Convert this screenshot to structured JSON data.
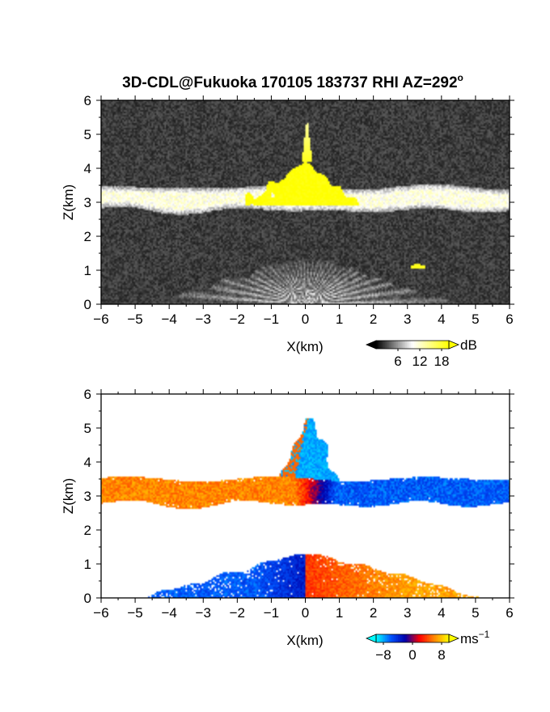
{
  "figure_title": "3D-CDL@Fukuoka 170105 183737 RHI AZ=292",
  "title_superscript": "o",
  "chart_data": [
    {
      "type": "heatmap",
      "quantity": "backscatter intensity",
      "xlabel": "X(km)",
      "ylabel": "Z(km)",
      "xlim": [
        -6,
        6
      ],
      "ylim": [
        0,
        6
      ],
      "x_ticks": [
        -6,
        -5,
        -4,
        -3,
        -2,
        -1,
        0,
        1,
        2,
        3,
        4,
        5,
        6
      ],
      "y_ticks": [
        0,
        1,
        2,
        3,
        4,
        5,
        6
      ],
      "colorbar": {
        "unit": "dB",
        "tick_labels": [
          "6",
          "12",
          "18"
        ],
        "range": [
          0,
          20
        ],
        "colors": [
          "#000000",
          "#ffffff",
          "#ffff00"
        ]
      },
      "features": [
        {
          "feature": "cloud layer",
          "z_bottom_km": 2.75,
          "z_top_km": 3.45,
          "x_range_km": [
            -6,
            6
          ],
          "level_db": 11
        },
        {
          "feature": "strong echo core",
          "z_range_km": [
            2.9,
            4.2
          ],
          "x_range_km": [
            -2.3,
            2.3
          ],
          "level_db": 19
        },
        {
          "feature": "spike",
          "z_range_km": [
            4.2,
            5.4
          ],
          "x_km": 0.05,
          "level_db": 18
        },
        {
          "feature": "boundary layer fan",
          "z_range_km": [
            0,
            1.3
          ],
          "x_range_km": [
            -4.5,
            4.6
          ],
          "level_db": 9
        },
        {
          "feature": "small bright patch",
          "x_km": 3.3,
          "z_km": 1.1,
          "level_db": 19
        }
      ]
    },
    {
      "type": "heatmap",
      "quantity": "Doppler velocity",
      "xlabel": "X(km)",
      "ylabel": "Z(km)",
      "xlim": [
        -6,
        6
      ],
      "ylim": [
        0,
        6
      ],
      "x_ticks": [
        -6,
        -5,
        -4,
        -3,
        -2,
        -1,
        0,
        1,
        2,
        3,
        4,
        5,
        6
      ],
      "y_ticks": [
        0,
        1,
        2,
        3,
        4,
        5,
        6
      ],
      "colorbar": {
        "unit": "ms",
        "unit_superscript": "−1",
        "tick_labels": [
          "−8",
          "0",
          "8"
        ],
        "range": [
          -10,
          10
        ],
        "colors": [
          "#00ffff",
          "#0055ff",
          "#0000aa",
          "#ff0000",
          "#ff8800",
          "#ffff00"
        ]
      },
      "features": [
        {
          "feature": "cloud layer west",
          "x_range_km": [
            -6,
            -1
          ],
          "z_range_km": [
            2.75,
            3.5
          ],
          "velocity_ms": 6
        },
        {
          "feature": "cloud layer east",
          "x_range_km": [
            0,
            6
          ],
          "z_range_km": [
            2.75,
            3.5
          ],
          "velocity_ms": -6
        },
        {
          "feature": "spike",
          "z_range_km": [
            3.5,
            5.3
          ],
          "x_km": 0.1,
          "velocity_ms": -8
        },
        {
          "feature": "boundary layer west",
          "x_range_km": [
            -4.8,
            0
          ],
          "z_range_km": [
            0,
            1.2
          ],
          "velocity_ms": -6
        },
        {
          "feature": "boundary layer east",
          "x_range_km": [
            0,
            5.2
          ],
          "z_range_km": [
            0,
            1.2
          ],
          "velocity_ms": 6
        }
      ]
    }
  ]
}
